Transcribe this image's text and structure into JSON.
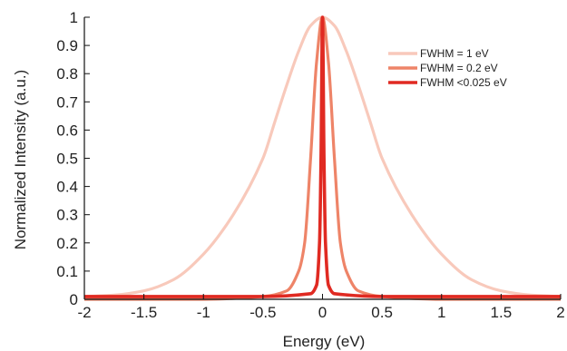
{
  "chart_data": {
    "type": "line",
    "title": "",
    "xlabel": "Energy (eV)",
    "ylabel": "Normalized Intensity (a.u.)",
    "xlim": [
      -2,
      2
    ],
    "ylim": [
      0,
      1
    ],
    "xticks": [
      -2,
      -1.5,
      -1,
      -0.5,
      0,
      0.5,
      1,
      1.5,
      2
    ],
    "xtick_labels": [
      "-2",
      "-1.5",
      "-1",
      "-0.5",
      "0",
      "0.5",
      "1",
      "1.5",
      "2"
    ],
    "yticks": [
      0,
      0.1,
      0.2,
      0.3,
      0.4,
      0.5,
      0.6,
      0.7,
      0.8,
      0.9,
      1
    ],
    "ytick_labels": [
      "0",
      "0.1",
      "0.2",
      "0.3",
      "0.4",
      "0.5",
      "0.6",
      "0.7",
      "0.8",
      "0.9",
      "1"
    ],
    "grid": false,
    "legend_position": "top-right",
    "series": [
      {
        "name": "FWHM = 1 eV",
        "color": "#f8c9bb",
        "x": [
          -2,
          -1.75,
          -1.5,
          -1.25,
          -1,
          -0.75,
          -0.5,
          -0.4,
          -0.3,
          -0.2,
          -0.1,
          0,
          0.1,
          0.2,
          0.3,
          0.4,
          0.5,
          0.75,
          1,
          1.25,
          1.5,
          1.75,
          2
        ],
        "y": [
          0.01,
          0.015,
          0.03,
          0.07,
          0.16,
          0.3,
          0.5,
          0.63,
          0.76,
          0.88,
          0.97,
          1,
          0.97,
          0.88,
          0.76,
          0.63,
          0.5,
          0.3,
          0.16,
          0.07,
          0.03,
          0.015,
          0.01
        ]
      },
      {
        "name": "FWHM = 0.2 eV",
        "color": "#ee8468",
        "x": [
          -2,
          -1,
          -0.5,
          -0.3,
          -0.2,
          -0.15,
          -0.1,
          -0.05,
          0,
          0.05,
          0.1,
          0.15,
          0.2,
          0.3,
          0.5,
          1,
          2
        ],
        "y": [
          0.0,
          0.0,
          0.01,
          0.03,
          0.1,
          0.2,
          0.5,
          0.84,
          1,
          0.84,
          0.5,
          0.2,
          0.1,
          0.03,
          0.01,
          0.0,
          0.0
        ],
        "tail_y": 0.0
      },
      {
        "name": "FWHM <0.025 eV",
        "color": "#e02a22",
        "x": [
          -2,
          -0.5,
          -0.1,
          -0.05,
          -0.025,
          -0.0125,
          0,
          0.0125,
          0.025,
          0.05,
          0.1,
          0.5,
          2
        ],
        "y": [
          0.01,
          0.01,
          0.02,
          0.05,
          0.2,
          0.5,
          1,
          0.5,
          0.2,
          0.05,
          0.02,
          0.01,
          0.01
        ]
      }
    ]
  }
}
